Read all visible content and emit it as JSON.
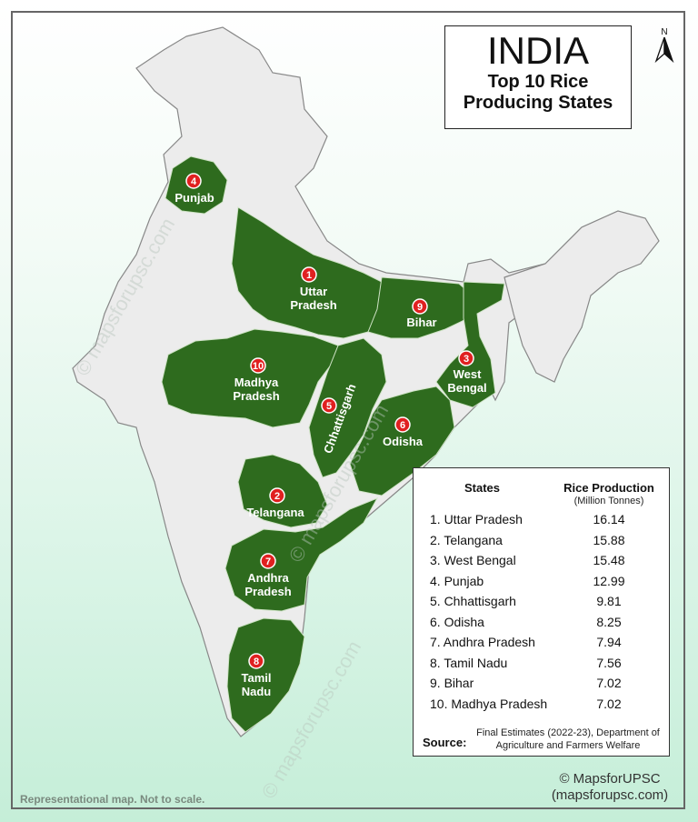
{
  "title": {
    "country": "INDIA",
    "line1": "Top 10 Rice",
    "line2": "Producing States"
  },
  "north_arrow": {
    "letter": "N"
  },
  "map": {
    "states": [
      {
        "rank": "1",
        "name_lines": [
          "Uttar",
          "Pradesh"
        ]
      },
      {
        "rank": "2",
        "name_lines": [
          "Telangana"
        ]
      },
      {
        "rank": "3",
        "name_lines": [
          "West",
          "Bengal"
        ]
      },
      {
        "rank": "4",
        "name_lines": [
          "Punjab"
        ]
      },
      {
        "rank": "5",
        "name_lines": [
          "Chhattisgarh"
        ]
      },
      {
        "rank": "6",
        "name_lines": [
          "Odisha"
        ]
      },
      {
        "rank": "7",
        "name_lines": [
          "Andhra",
          "Pradesh"
        ]
      },
      {
        "rank": "8",
        "name_lines": [
          "Tamil",
          "Nadu"
        ]
      },
      {
        "rank": "9",
        "name_lines": [
          "Bihar"
        ]
      },
      {
        "rank": "10",
        "name_lines": [
          "Madhya",
          "Pradesh"
        ]
      }
    ],
    "watermark": "© mapsforupsc.com",
    "colors": {
      "highlight": "#2e6b1e",
      "land": "#ececec",
      "border": "#999999",
      "badge": "#e02020"
    }
  },
  "legend": {
    "header_states": "States",
    "header_production": "Rice Production",
    "header_unit": "(Million Tonnes)",
    "rows": [
      {
        "state": "1. Uttar Pradesh",
        "value": "16.14"
      },
      {
        "state": "2. Telangana",
        "value": "15.88"
      },
      {
        "state": "3. West Bengal",
        "value": "15.48"
      },
      {
        "state": "4. Punjab",
        "value": "12.99"
      },
      {
        "state": "5. Chhattisgarh",
        "value": "9.81"
      },
      {
        "state": "6. Odisha",
        "value": "8.25"
      },
      {
        "state": "7. Andhra Pradesh",
        "value": "7.94"
      },
      {
        "state": "8. Tamil Nadu",
        "value": "7.56"
      },
      {
        "state": "9. Bihar",
        "value": "7.02"
      },
      {
        "state": "10. Madhya Pradesh",
        "value": "7.02"
      }
    ],
    "source_label": "Source:",
    "source_text": "Final Estimates (2022-23), Department of Agriculture and Farmers Welfare"
  },
  "footer": {
    "disclaimer": "Representational map. Not to scale.",
    "copyright_line1": "© MapsforUPSC",
    "copyright_line2": "(mapsforupsc.com)"
  }
}
